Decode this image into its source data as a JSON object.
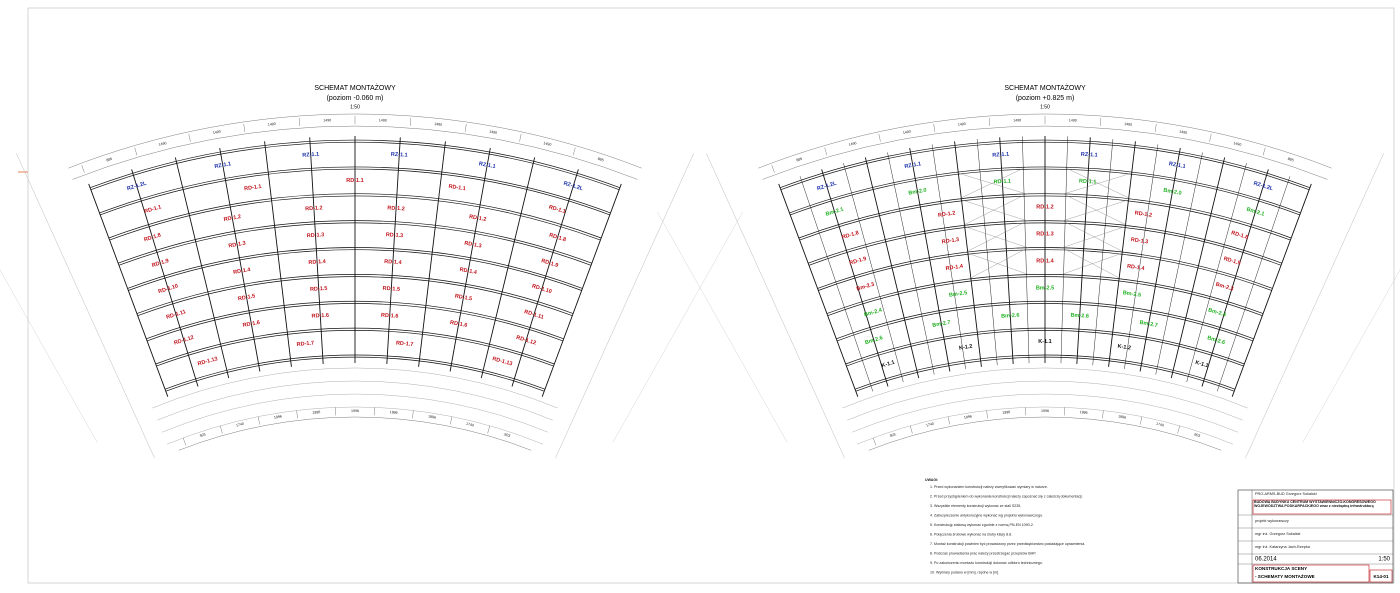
{
  "plans": [
    {
      "title": "SCHEMAT MONTAŻOWY",
      "level": "(poziom -0.060 m)",
      "scale": "1:50",
      "dims_top": [
        "885",
        "1490",
        "1490",
        "1490",
        "1490",
        "1490",
        "1490",
        "1490",
        "1490",
        "885"
      ],
      "dims_bottom": [
        "903",
        "1740",
        "1996",
        "1996",
        "1996",
        "1996",
        "1996",
        "1740",
        "903"
      ],
      "rows": [
        {
          "color": "#1a2fa8",
          "labels": [
            "RZ-1.2L",
            "RZ-1.1",
            "RZ-1.1",
            "RZ-1.1",
            "RZ-1.1",
            "RZ-1.2L"
          ]
        },
        {
          "color": "#c0141c",
          "labels": [
            "RD-1.1",
            "RD-1.1",
            "RD-1.1",
            "RD-1.1",
            "RD-1.1"
          ]
        },
        {
          "color": "#c0141c",
          "labels": [
            "RD-1.8",
            "RD-1.2",
            "RD-1.2",
            "RD-1.2",
            "RD-1.2",
            "RD-1.8"
          ]
        },
        {
          "color": "#c0141c",
          "labels": [
            "RD-1.9",
            "RD-1.3",
            "RD-1.3",
            "RD-1.3",
            "RD-1.3",
            "RD-1.9"
          ]
        },
        {
          "color": "#c0141c",
          "labels": [
            "RD-1.10",
            "RD-1.4",
            "RD-1.4",
            "RD-1.4",
            "RD-1.4",
            "RD-1.10"
          ]
        },
        {
          "color": "#c0141c",
          "labels": [
            "RD-1.11",
            "RD-1.5",
            "RD-1.5",
            "RD-1.5",
            "RD-1.5",
            "RD-1.11"
          ]
        },
        {
          "color": "#c0141c",
          "labels": [
            "RD-1.12",
            "RD-1.6",
            "RD-1.6",
            "RD-1.6",
            "RD-1.6",
            "RD-1.12"
          ]
        },
        {
          "color": "#c0141c",
          "labels": [
            "RD-1.13",
            "RD-1.7",
            "RD-1.7",
            "RD-1.13"
          ]
        }
      ]
    },
    {
      "title": "SCHEMAT MONTAŻOWY",
      "level": "(poziom +0.825 m)",
      "scale": "1:50",
      "dims_top": [
        "885",
        "1490",
        "1490",
        "1490",
        "1490",
        "1490",
        "1490",
        "1490",
        "1490",
        "885"
      ],
      "dims_bottom": [
        "903",
        "1740",
        "1996",
        "1996",
        "1996",
        "1996",
        "1996",
        "1740",
        "903"
      ],
      "rows": [
        {
          "color": "#1a2fa8",
          "labels": [
            "RZ-1.2L",
            "RZ-1.1",
            "RZ-1.1",
            "RZ-1.1",
            "RZ-1.1",
            "RZ-1.2L"
          ]
        },
        {
          "color": "#22b022",
          "labels": [
            "Bm-2.1",
            "Bm-2.0",
            "RD-1.1",
            "RD-1.1",
            "Bm-2.0",
            "Bm-2.1"
          ]
        },
        {
          "color": "#c0141c",
          "labels": [
            "RD-1.8",
            "RD-1.2",
            "RD-1.2",
            "RD-1.2",
            "RD-1.8"
          ]
        },
        {
          "color": "#c0141c",
          "labels": [
            "RD-1.9",
            "RD-1.3",
            "RD-1.3",
            "RD-1.3",
            "RD-1.9"
          ]
        },
        {
          "color": "#c0141c",
          "labels": [
            "Bm-2.3",
            "RD-1.4",
            "RD-1.4",
            "RD-1.4",
            "Bm-2.3"
          ]
        },
        {
          "color": "#22b022",
          "labels": [
            "Bm-2.4",
            "Bm-2.5",
            "Bm-2.5",
            "Bm-2.5",
            "Bm-2.4"
          ]
        },
        {
          "color": "#22b022",
          "labels": [
            "Bm-2.6",
            "Bm-2.7",
            "Bm-2.6",
            "Bm-2.6",
            "Bm-2.7",
            "Bm-2.6"
          ]
        },
        {
          "color": "#111111",
          "labels": [
            "K-1.1",
            "K-1.2",
            "K-1.1",
            "K-1.2",
            "K-1.1"
          ]
        }
      ]
    }
  ],
  "notes": {
    "heading": "UWAGI:",
    "items": [
      "1. Przed wykonaniem konstrukcji należy zweryfikować wymiary w naturze.",
      "2. Przed przystąpieniem do wykonania konstrukcji należy zapoznać się z całością dokumentacji.",
      "3. Wszystkie elementy konstrukcji wykonać ze stali S235.",
      "4. Zabezpieczenie antykorozyjne wykonać wg projektu wykonawczego.",
      "5. Konstrukcję stalową wykonać zgodnie z normą PN-EN 1090-2.",
      "6. Połączenia śrubowe wykonać na śruby klasy 8.8.",
      "7. Montaż konstrukcji powinien być prowadzony przez przedsiębiorstwo posiadające uprawnienia.",
      "8. Podczas prowadzenia prac należy przestrzegać przepisów BHP.",
      "9. Po zakończeniu montażu konstrukcji dokonać odbioru technicznego.",
      "10. Wymiary podano w [mm], rzędne w [m]."
    ]
  },
  "title_block": {
    "investor": "PRO-ARMS-BUD Grzegorz Sokalski",
    "project": "BUDOWA BUDYNKU CENTRUM WYSTAWIENNICZO-KONGRESOWEGO WOJEWÓDZTWA PODKARPACKIEGO wraz z niezbędną infrastrukturą",
    "stage": "projekt wykonawczy",
    "designer": "mgr inż. Grzegorz Sokalski",
    "checker": "mgr inż. Katarzyna Jach-Rzepka",
    "date": "06.2014",
    "scale": "1:50",
    "drawing_title": "KONSTRUKCJA SCENY",
    "drawing_subtitle": "- SCHEMATY MONTAŻOWE",
    "number": "K14-01"
  }
}
